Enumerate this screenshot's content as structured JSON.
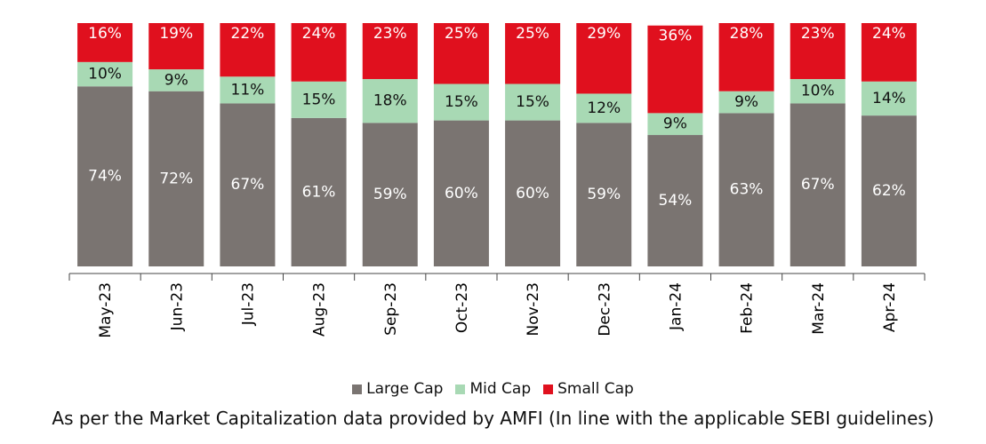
{
  "chart_data": {
    "type": "bar",
    "stacked": true,
    "categories": [
      "May-23",
      "Jun-23",
      "Jul-23",
      "Aug-23",
      "Sep-23",
      "Oct-23",
      "Nov-23",
      "Dec-23",
      "Jan-24",
      "Feb-24",
      "Mar-24",
      "Apr-24"
    ],
    "series": [
      {
        "name": "Large Cap",
        "color": "#7a7471",
        "values": [
          74,
          72,
          67,
          61,
          59,
          60,
          60,
          59,
          54,
          63,
          67,
          62
        ]
      },
      {
        "name": "Mid Cap",
        "color": "#a8d9b4",
        "values": [
          10,
          9,
          11,
          15,
          18,
          15,
          15,
          12,
          9,
          9,
          10,
          14
        ]
      },
      {
        "name": "Small Cap",
        "color": "#e0101e",
        "values": [
          16,
          19,
          22,
          24,
          23,
          25,
          25,
          29,
          36,
          28,
          23,
          24
        ]
      }
    ],
    "ylim": [
      0,
      100
    ],
    "label_format": "percent",
    "legend_position": "bottom",
    "grid": false
  },
  "footnote": "As per the Market Capitalization data provided by AMFI (In line with the applicable SEBI guidelines)"
}
